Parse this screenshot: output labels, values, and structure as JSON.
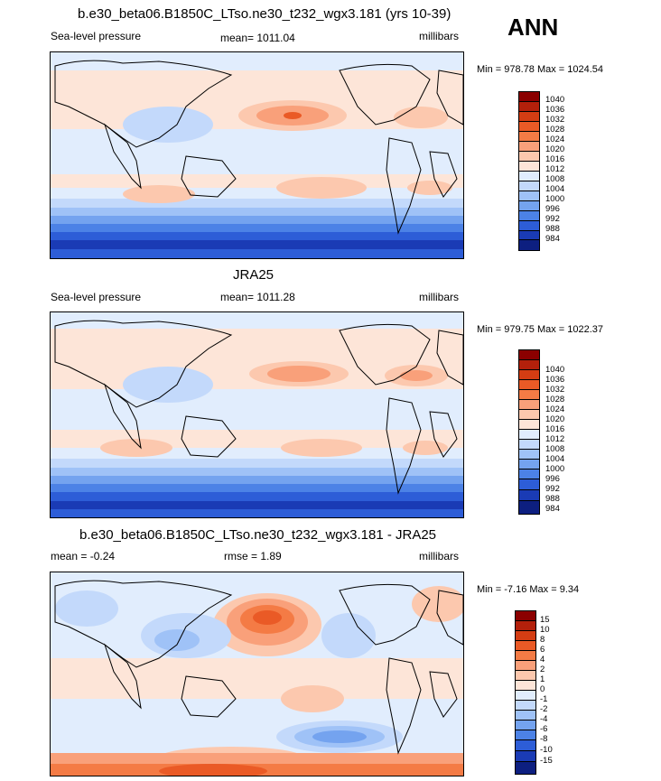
{
  "ann_label": "ANN",
  "panels": [
    {
      "title": "b.e30_beta06.B1850C_LTso.ne30_t232_wgx3.181 (yrs 10-39)",
      "left_label": "Sea-level pressure",
      "center_label": "mean= 1011.04",
      "right_label": "millibars",
      "minmax": "Min = 978.78 Max = 1024.54",
      "colorbar_labels": [
        "1040",
        "1036",
        "1032",
        "1028",
        "1024",
        "1020",
        "1016",
        "1012",
        "1008",
        "1004",
        "1000",
        "996",
        "992",
        "988",
        "984"
      ]
    },
    {
      "title": "JRA25",
      "left_label": "Sea-level pressure",
      "center_label": "mean= 1011.28",
      "right_label": "millibars",
      "minmax": "Min = 979.75 Max = 1022.37",
      "colorbar_labels": [
        "1040",
        "1036",
        "1032",
        "1028",
        "1024",
        "1020",
        "1016",
        "1012",
        "1008",
        "1004",
        "1000",
        "996",
        "992",
        "988",
        "984"
      ]
    },
    {
      "title": "b.e30_beta06.B1850C_LTso.ne30_t232_wgx3.181 - JRA25",
      "left_label": "mean =  -0.24",
      "center_label": "rmse =   1.89",
      "right_label": "millibars",
      "minmax": "Min =  -7.16 Max =   9.34",
      "colorbar_labels": [
        "15",
        "10",
        "8",
        "6",
        "4",
        "2",
        "1",
        "0",
        "-1",
        "-2",
        "-4",
        "-6",
        "-8",
        "-10",
        "-15"
      ]
    }
  ],
  "colors": {
    "abs_scale": [
      "#8b0000",
      "#b3200b",
      "#d43d13",
      "#ea5a26",
      "#f47b45",
      "#f9a07a",
      "#fcc8ae",
      "#fde5d8",
      "#e1edfd",
      "#c3d9fb",
      "#9fc2f7",
      "#74a3ef",
      "#4c82e6",
      "#2d5dd7",
      "#1a3bb5",
      "#0d1f80"
    ],
    "diff_scale": [
      "#8b0000",
      "#b3200b",
      "#d43d13",
      "#ea5a26",
      "#f47b45",
      "#f9a07a",
      "#fcc8ae",
      "#fde5d8",
      "#e1edfd",
      "#c3d9fb",
      "#9fc2f7",
      "#74a3ef",
      "#4c82e6",
      "#2d5dd7",
      "#1a3bb5",
      "#0d1f80"
    ]
  }
}
